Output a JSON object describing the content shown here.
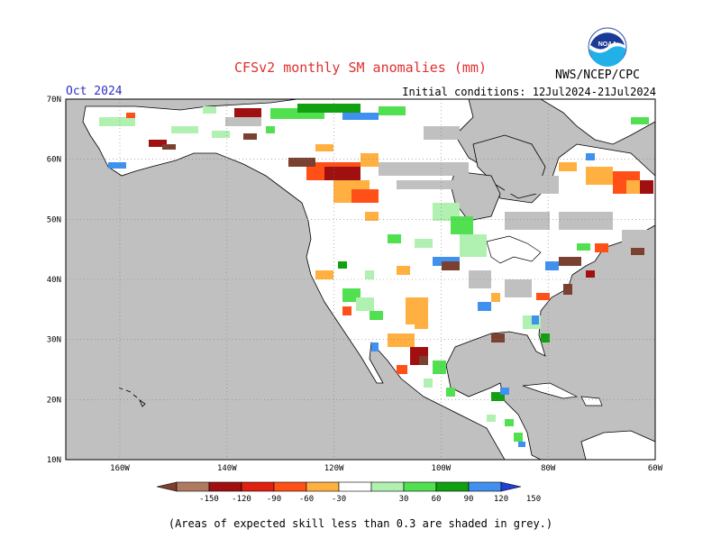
{
  "header": {
    "title": "CFSv2 monthly SM anomalies (mm)",
    "issuer": "NWS/NCEP/CPC",
    "month": "Oct 2024",
    "initial_conditions": "Initial conditions: 12Jul2024-21Jul2024"
  },
  "logo": {
    "text": "NOAA",
    "icon": "noaa-logo-icon"
  },
  "map": {
    "lat_labels": [
      "70N",
      "60N",
      "50N",
      "40N",
      "30N",
      "20N",
      "10N"
    ],
    "lon_labels": [
      "160W",
      "140W",
      "120W",
      "100W",
      "80W",
      "60W"
    ],
    "land_color": "#ffffff",
    "ocean_color": "#c0c0c0",
    "low_skill_color": "#c0c0c0"
  },
  "colorbar": {
    "ticks": [
      "-150",
      "-120",
      "-90",
      "-60",
      "-30",
      "30",
      "60",
      "90",
      "120",
      "150"
    ],
    "colors": [
      "#7a4030",
      "#b07a60",
      "#a01010",
      "#e02010",
      "#ff5018",
      "#ffb040",
      "#ffffff",
      "#b0f0b0",
      "#50e050",
      "#10a010",
      "#4090f0",
      "#2040d0"
    ]
  },
  "footnote": "(Areas of expected skill less than 0.3 are shaded in grey.)"
}
